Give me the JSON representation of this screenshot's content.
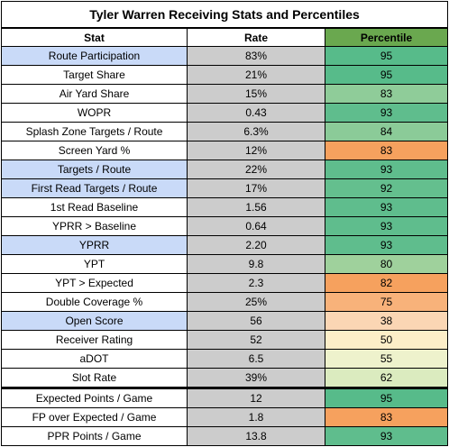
{
  "title": "Tyler Warren Receiving Stats and Percentiles",
  "headers": {
    "stat": "Stat",
    "rate": "Rate",
    "percentile": "Percentile"
  },
  "colors": {
    "header_percentile": "#6aa84f",
    "rate_fill": "#cccccc",
    "highlight_stat": "#c9daf8"
  },
  "rows": [
    {
      "stat": "Route Participation",
      "rate": "83%",
      "percentile": "95",
      "highlight": true,
      "color": "#57bb8a"
    },
    {
      "stat": "Target Share",
      "rate": "21%",
      "percentile": "95",
      "highlight": false,
      "color": "#57bb8a"
    },
    {
      "stat": "Air Yard Share",
      "rate": "15%",
      "percentile": "83",
      "highlight": false,
      "color": "#8fcc99"
    },
    {
      "stat": "WOPR",
      "rate": "0.43",
      "percentile": "93",
      "highlight": false,
      "color": "#5fbd8d"
    },
    {
      "stat": "Splash Zone Targets / Route",
      "rate": "6.3%",
      "percentile": "84",
      "highlight": false,
      "color": "#8bcb98"
    },
    {
      "stat": "Screen Yard %",
      "rate": "12%",
      "percentile": "83",
      "highlight": false,
      "color": "#f6a15e"
    },
    {
      "stat": "Targets / Route",
      "rate": "22%",
      "percentile": "93",
      "highlight": true,
      "color": "#5fbd8d"
    },
    {
      "stat": "First Read Targets / Route",
      "rate": "17%",
      "percentile": "92",
      "highlight": true,
      "color": "#64bf8e"
    },
    {
      "stat": "1st Read Baseline",
      "rate": "1.56",
      "percentile": "93",
      "highlight": false,
      "color": "#5fbd8d"
    },
    {
      "stat": "YPRR > Baseline",
      "rate": "0.64",
      "percentile": "93",
      "highlight": false,
      "color": "#5fbd8d"
    },
    {
      "stat": "YPRR",
      "rate": "2.20",
      "percentile": "93",
      "highlight": true,
      "color": "#5fbd8d"
    },
    {
      "stat": "YPT",
      "rate": "9.8",
      "percentile": "80",
      "highlight": false,
      "color": "#9fd19c"
    },
    {
      "stat": "YPT > Expected",
      "rate": "2.3",
      "percentile": "82",
      "highlight": false,
      "color": "#f6a15e"
    },
    {
      "stat": "Double Coverage %",
      "rate": "25%",
      "percentile": "75",
      "highlight": false,
      "color": "#f8b27a"
    },
    {
      "stat": "Open Score",
      "rate": "56",
      "percentile": "38",
      "highlight": true,
      "color": "#fbd6b4"
    },
    {
      "stat": "Receiver Rating",
      "rate": "52",
      "percentile": "50",
      "highlight": false,
      "color": "#fdeec8"
    },
    {
      "stat": "aDOT",
      "rate": "6.5",
      "percentile": "55",
      "highlight": false,
      "color": "#eef2cc"
    },
    {
      "stat": "Slot Rate",
      "rate": "39%",
      "percentile": "62",
      "highlight": false,
      "color": "#dbebbf"
    },
    {
      "stat": "Expected Points / Game",
      "rate": "12",
      "percentile": "95",
      "highlight": false,
      "color": "#57bb8a",
      "separator": true
    },
    {
      "stat": "FP over Expected / Game",
      "rate": "1.8",
      "percentile": "83",
      "highlight": false,
      "color": "#f6a15e"
    },
    {
      "stat": "PPR Points / Game",
      "rate": "13.8",
      "percentile": "93",
      "highlight": false,
      "color": "#5fbd8d"
    }
  ]
}
